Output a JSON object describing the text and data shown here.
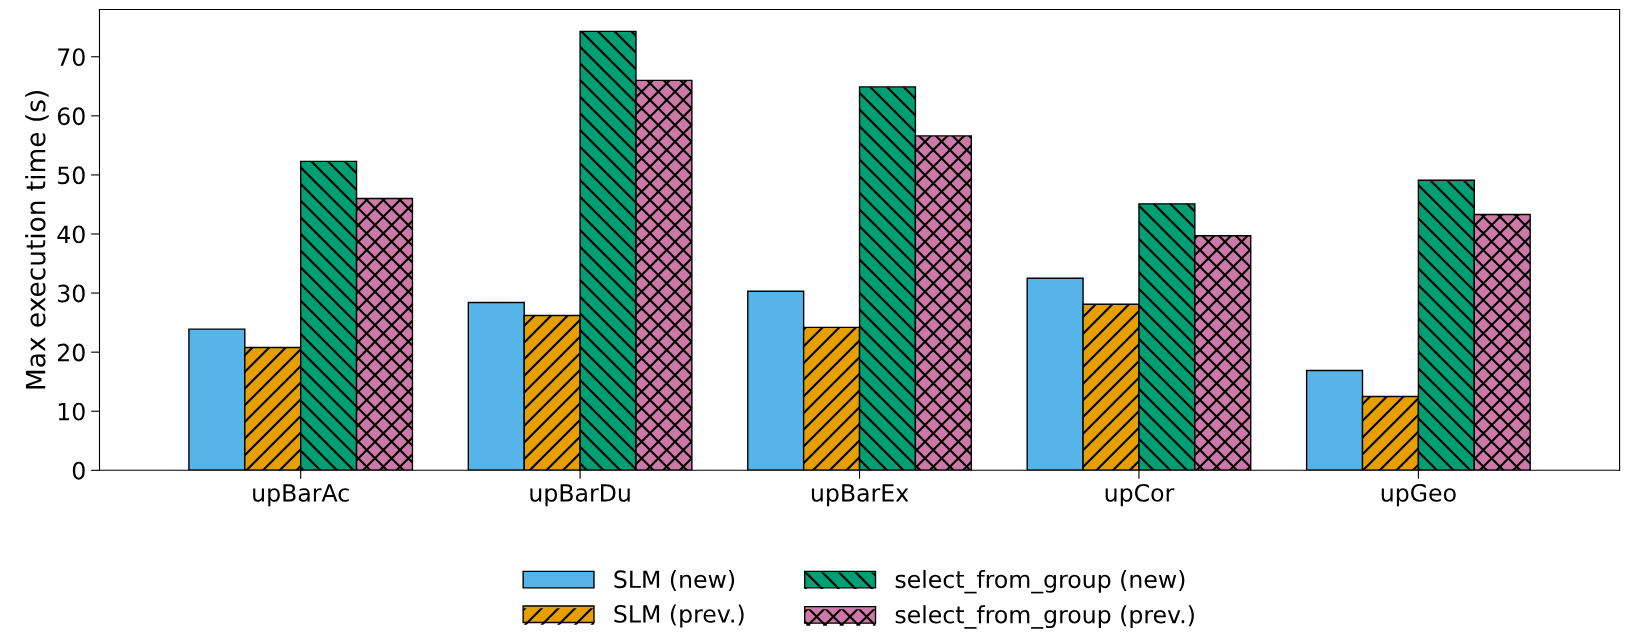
{
  "chart_data": {
    "type": "bar",
    "ylabel": "Max execution time (s)",
    "categories": [
      "upBarAc",
      "upBarDu",
      "upBarEx",
      "upCor",
      "upGeo"
    ],
    "series": [
      {
        "name": "SLM (new)",
        "color": "#56b4e9",
        "values": [
          23.9,
          28.4,
          30.3,
          32.5,
          16.9
        ]
      },
      {
        "name": "SLM (prev.)",
        "color": "#e69f00",
        "values": [
          20.8,
          26.2,
          24.2,
          28.1,
          12.5
        ]
      },
      {
        "name": "select_from_group (new)",
        "color": "#009e73",
        "values": [
          52.3,
          74.3,
          64.9,
          45.1,
          49.1
        ]
      },
      {
        "name": "select_from_group (prev.)",
        "color": "#cc79a7",
        "values": [
          46.0,
          66.0,
          56.6,
          39.7,
          43.3
        ]
      }
    ],
    "ylim": [
      0,
      78
    ],
    "yticks": [
      0,
      10,
      20,
      30,
      40,
      50,
      60,
      70
    ],
    "grid": false,
    "legend": "bottom"
  }
}
